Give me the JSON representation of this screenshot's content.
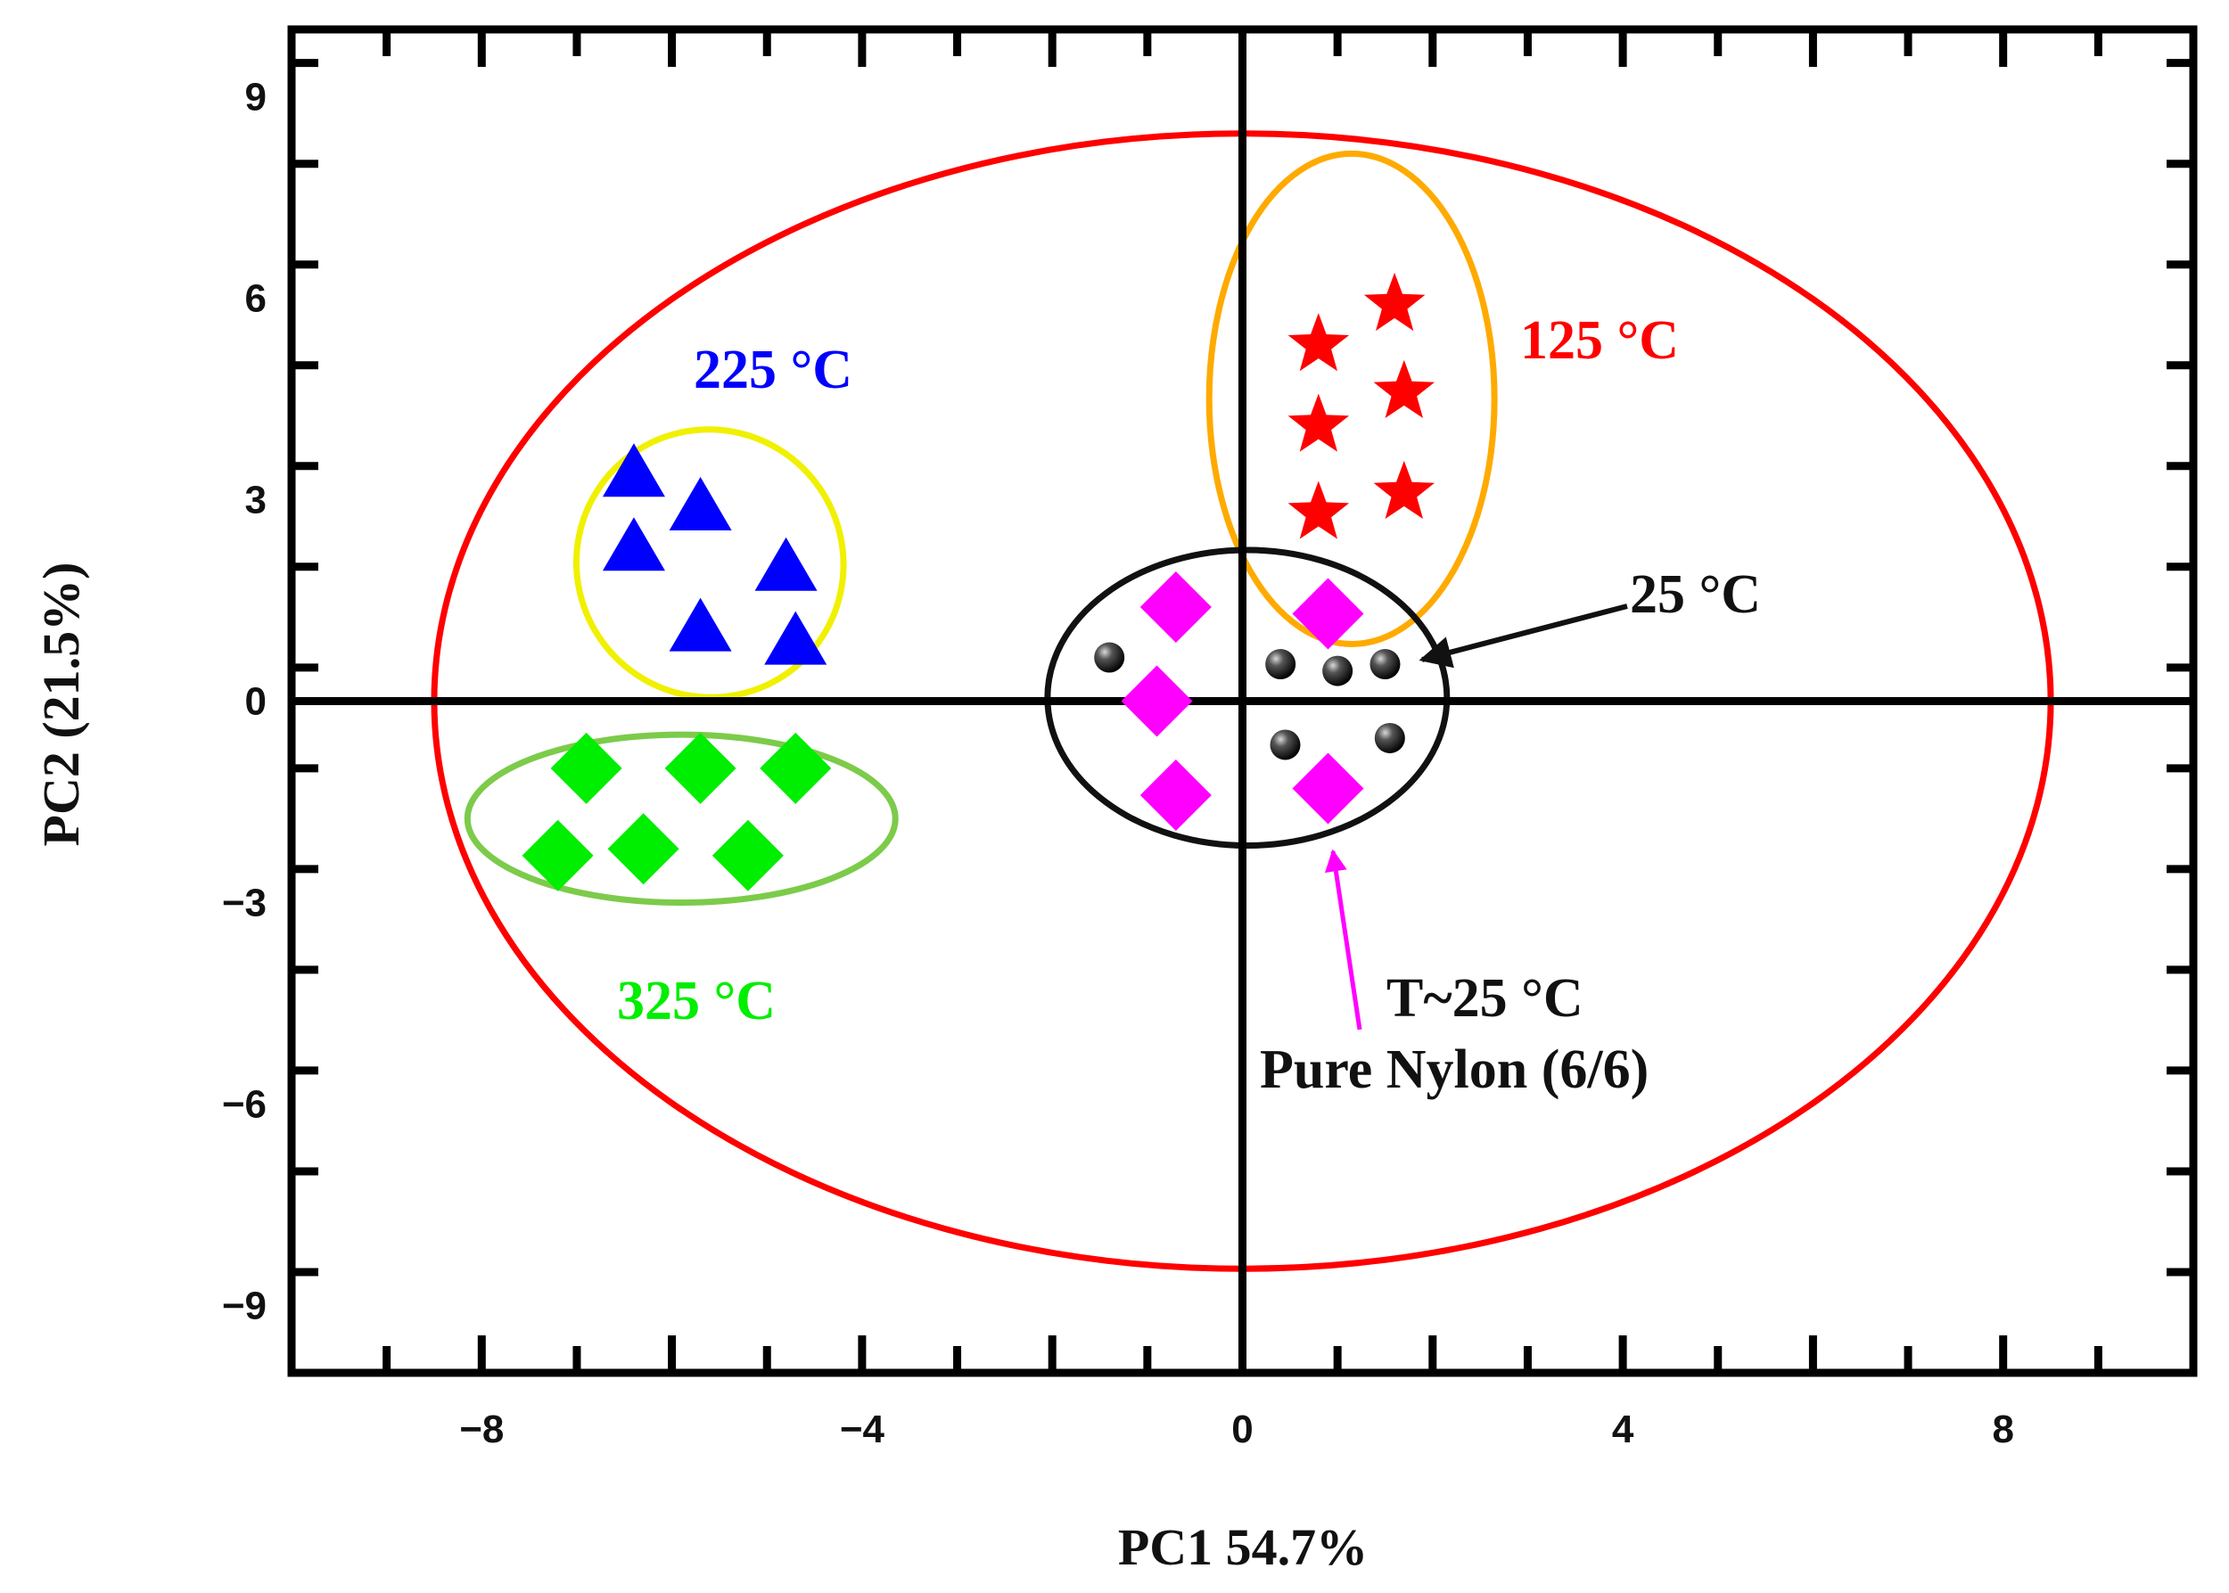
{
  "chart_data": {
    "type": "scatter",
    "title": "",
    "xlabel": "PC1 54.7%",
    "ylabel": "PC2 (21.5%)",
    "xlim": [
      -10,
      10
    ],
    "ylim": [
      -10,
      10
    ],
    "x_ticks": [
      -8,
      -4,
      0,
      4,
      8
    ],
    "y_ticks": [
      9,
      6,
      3,
      0,
      -3,
      -6,
      -9
    ],
    "x_tick_labels": [
      "−8",
      "−4",
      "0",
      "4",
      "8"
    ],
    "y_tick_labels": [
      "9",
      "6",
      "3",
      "0",
      "−3",
      "−6",
      "−9"
    ],
    "grid": false,
    "zero_lines": true,
    "series": [
      {
        "name": "125 °C",
        "marker": "star",
        "color": "#ff0000",
        "points": [
          [
            0.8,
            5.3
          ],
          [
            1.6,
            5.9
          ],
          [
            0.8,
            4.1
          ],
          [
            1.7,
            4.6
          ],
          [
            0.8,
            2.8
          ],
          [
            1.7,
            3.1
          ]
        ]
      },
      {
        "name": "225 °C",
        "marker": "triangle",
        "color": "#0000ff",
        "points": [
          [
            -6.4,
            3.4
          ],
          [
            -5.7,
            2.9
          ],
          [
            -6.4,
            2.3
          ],
          [
            -4.8,
            2.0
          ],
          [
            -5.7,
            1.1
          ],
          [
            -4.7,
            0.9
          ]
        ]
      },
      {
        "name": "325 °C",
        "marker": "diamond",
        "color": "#00ee00",
        "points": [
          [
            -6.9,
            -1.0
          ],
          [
            -5.7,
            -1.0
          ],
          [
            -4.7,
            -1.0
          ],
          [
            -7.2,
            -2.3
          ],
          [
            -6.3,
            -2.2
          ],
          [
            -5.2,
            -2.3
          ]
        ]
      },
      {
        "name": "T~25 °C Pure Nylon (6/6)",
        "marker": "diamond",
        "color": "#ff00ff",
        "points": [
          [
            -0.7,
            1.4
          ],
          [
            0.9,
            1.3
          ],
          [
            -0.9,
            0.0
          ],
          [
            -0.7,
            -1.4
          ],
          [
            0.9,
            -1.3
          ]
        ]
      },
      {
        "name": "25 °C",
        "marker": "sphere",
        "color": "#111111",
        "points": [
          [
            -1.4,
            0.65
          ],
          [
            0.4,
            0.55
          ],
          [
            1.0,
            0.45
          ],
          [
            1.5,
            0.55
          ],
          [
            0.45,
            -0.65
          ],
          [
            1.55,
            -0.55
          ]
        ]
      }
    ],
    "ellipses": [
      {
        "name": "overall-95%",
        "cx": 0.0,
        "cy": 0.0,
        "rx": 8.5,
        "ry": 8.45,
        "angle": 0,
        "color": "#ff0000"
      },
      {
        "name": "125-group",
        "cx": 1.15,
        "cy": 4.5,
        "rx": 1.5,
        "ry": 3.65,
        "angle": 0,
        "color": "#ffaa00"
      },
      {
        "name": "225-group",
        "cx": -5.6,
        "cy": 2.05,
        "rx": 1.4,
        "ry": 2.0,
        "angle": -35,
        "color": "#f0f000"
      },
      {
        "name": "325-group",
        "cx": -5.9,
        "cy": -1.75,
        "rx": 2.25,
        "ry": 1.25,
        "angle": 0,
        "color": "#7ccb4a"
      },
      {
        "name": "25-group",
        "cx": 0.05,
        "cy": 0.05,
        "rx": 2.1,
        "ry": 2.2,
        "angle": 0,
        "color": "#111111"
      }
    ],
    "annotations": [
      {
        "text": "125 °C",
        "color": "#ff0000"
      },
      {
        "text": "225 °C",
        "color": "#0000ff"
      },
      {
        "text": "325 °C",
        "color": "#00ee00"
      },
      {
        "text": "25 °C",
        "color": "#111111"
      },
      {
        "text": "T~25 °C",
        "color": "#111111"
      },
      {
        "text": "Pure Nylon (6/6)",
        "color": "#111111"
      }
    ]
  }
}
